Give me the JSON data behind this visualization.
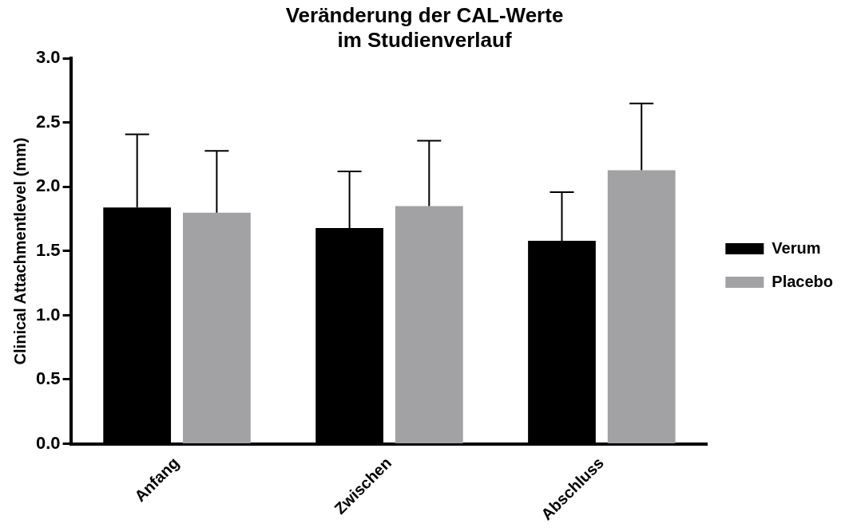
{
  "chart_data": {
    "type": "bar",
    "title": [
      "Veränderung der CAL-Werte",
      "im Studienverlauf"
    ],
    "ylabel": "Clinical Attachmentlevel (mm)",
    "categories": [
      "Anfang",
      "Zwischen",
      "Abschluss"
    ],
    "series": [
      {
        "name": "Verum",
        "color": "#000000",
        "values": [
          1.84,
          1.68,
          1.58
        ],
        "errors": [
          [
            1.84,
            2.41
          ],
          [
            1.68,
            2.12
          ],
          [
            1.58,
            1.96
          ]
        ]
      },
      {
        "name": "Placebo",
        "color": "#a2a2a5",
        "values": [
          1.8,
          1.85,
          2.13
        ],
        "errors": [
          [
            1.8,
            2.28
          ],
          [
            1.85,
            2.36
          ],
          [
            2.13,
            2.65
          ]
        ]
      }
    ],
    "ylim": [
      0,
      3
    ],
    "yticks": [
      {
        "value": 0,
        "label": "0.0"
      },
      0.5,
      {
        "value": 1,
        "label": "1.0"
      },
      1.5,
      {
        "value": 2,
        "label": "2.0"
      },
      2.5,
      {
        "value": 3,
        "label": "3.0"
      }
    ],
    "grid": false,
    "legend": "right"
  }
}
